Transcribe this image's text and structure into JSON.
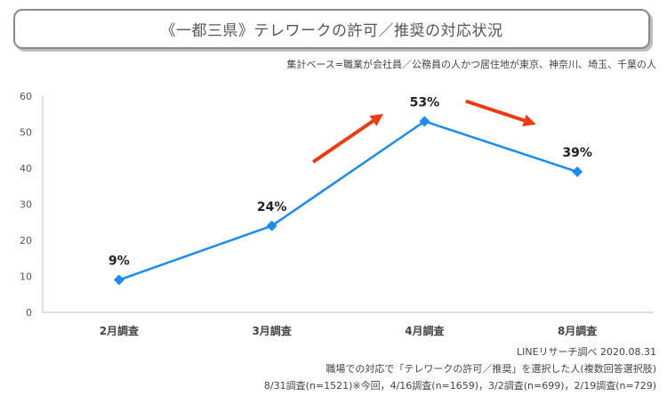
{
  "title": "《一都三県》テレワークの許可／推奨の対応状況",
  "base_note": "集計ベース=職業が会社員／公務員の人かつ居住地が東京、神奈川、埼玉、千葉の人",
  "chart_data": {
    "type": "line",
    "categories": [
      "2月調査",
      "3月調査",
      "4月調査",
      "8月調査"
    ],
    "series": [
      {
        "values": [
          9,
          24,
          53,
          39
        ]
      }
    ],
    "data_labels": [
      "9%",
      "24%",
      "53%",
      "39%"
    ],
    "ylim": [
      0,
      60
    ],
    "yticks": [
      "0",
      "10",
      "20",
      "30",
      "40",
      "50",
      "60"
    ],
    "grid": false,
    "colors": {
      "line": "#1a8cf0",
      "arrow": "#ee3a12",
      "axis": "#bfbfbf"
    },
    "annotations": [
      {
        "type": "arrow",
        "direction": "up",
        "between": [
          "3月調査",
          "4月調査"
        ]
      },
      {
        "type": "arrow",
        "direction": "down",
        "between": [
          "4月調査",
          "8月調査"
        ]
      }
    ]
  },
  "footnotes": [
    "LINEリサーチ調べ 2020.08.31",
    "職場での対応で「テレワークの許可／推奨」を選択した人(複数回答選択肢)",
    "8/31調査(n=1521)※今回，4/16調査(n=1659)，3/2調査(n=699)，2/19調査(n=729)"
  ]
}
